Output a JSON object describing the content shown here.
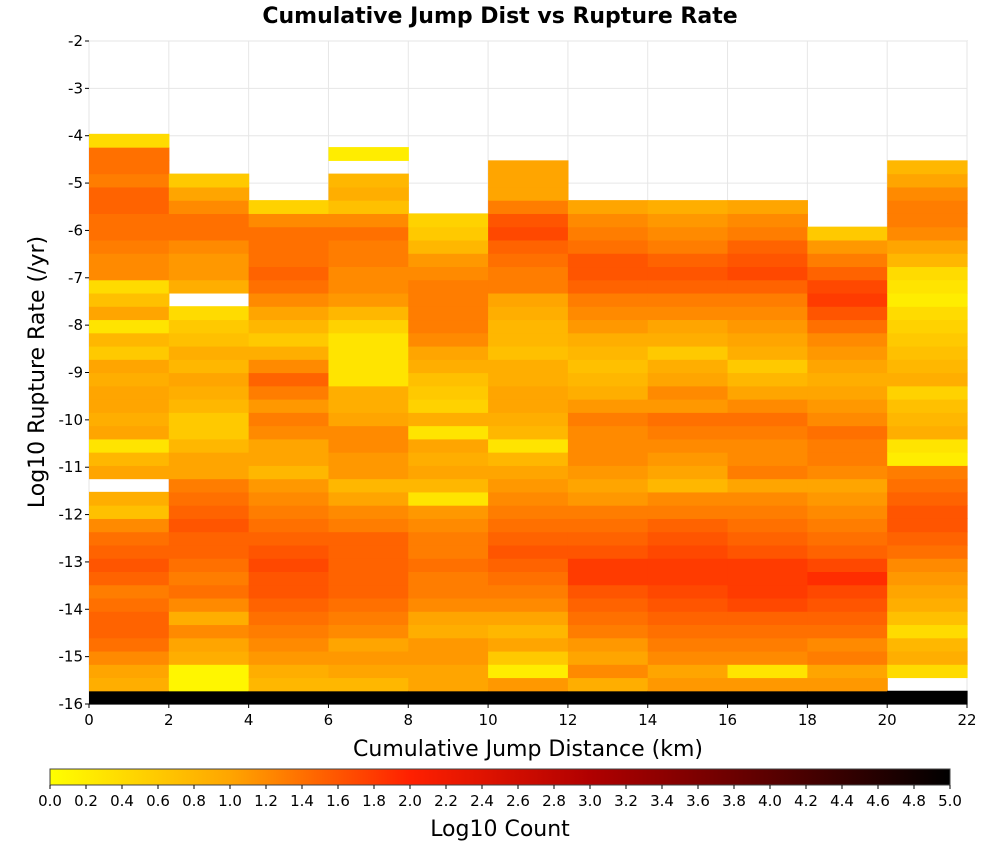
{
  "chart_data": {
    "type": "heatmap",
    "title": "Cumulative Jump Dist vs Rupture Rate",
    "xlabel": "Cumulative Jump Distance (km)",
    "ylabel": "Log10 Rupture Rate (/yr)",
    "xlim": [
      0,
      22
    ],
    "ylim": [
      -16,
      -2
    ],
    "x_ticks": [
      "0",
      "2",
      "4",
      "6",
      "8",
      "10",
      "12",
      "14",
      "16",
      "18",
      "20",
      "22"
    ],
    "y_ticks": [
      "-2",
      "-3",
      "-4",
      "-5",
      "-6",
      "-7",
      "-8",
      "-9",
      "-10",
      "-11",
      "-12",
      "-13",
      "-14",
      "-15",
      "-16"
    ],
    "x_bin_width": 2,
    "y_bin_width": 0.28,
    "colorbar": {
      "label": "Log10 Count",
      "range": [
        0,
        5
      ],
      "ticks": [
        "0.0",
        "0.2",
        "0.4",
        "0.6",
        "0.8",
        "1.0",
        "1.2",
        "1.4",
        "1.6",
        "1.8",
        "2.0",
        "2.2",
        "2.4",
        "2.6",
        "2.8",
        "3.0",
        "3.2",
        "3.4",
        "3.6",
        "3.8",
        "4.0",
        "4.2",
        "4.4",
        "4.6",
        "4.8",
        "5.0"
      ]
    },
    "note_rows": "rows ordered from the bottom (y=-16) upward; null = empty bin",
    "columns": [
      [
        5.0,
        0.9,
        1.0,
        1.2,
        1.4,
        1.5,
        1.5,
        1.4,
        1.3,
        1.5,
        1.6,
        1.5,
        1.4,
        1.2,
        0.7,
        0.9,
        null,
        1.0,
        0.8,
        0.3,
        1.0,
        0.9,
        1.0,
        1.0,
        0.9,
        1.0,
        0.6,
        0.8,
        0.3,
        1.0,
        0.7,
        0.4,
        1.2,
        1.2,
        1.3,
        1.4,
        1.4,
        1.5,
        1.5,
        1.3,
        1.4,
        1.4,
        0.4
      ],
      [
        5.0,
        0.1,
        0.1,
        0.9,
        1.0,
        1.2,
        0.9,
        1.2,
        1.4,
        1.3,
        1.4,
        1.5,
        1.5,
        1.6,
        1.5,
        1.4,
        1.3,
        1.0,
        1.0,
        0.8,
        0.6,
        0.6,
        0.8,
        0.9,
        1.0,
        0.8,
        0.9,
        0.7,
        0.6,
        0.4,
        null,
        0.9,
        1.1,
        1.1,
        1.2,
        1.4,
        1.4,
        1.2,
        1.0,
        0.6
      ],
      [
        5.0,
        0.8,
        0.9,
        1.1,
        1.2,
        1.3,
        1.4,
        1.5,
        1.6,
        1.6,
        1.7,
        1.6,
        1.5,
        1.4,
        1.3,
        1.2,
        1.1,
        0.8,
        1.0,
        1.0,
        1.2,
        1.3,
        1.1,
        1.3,
        1.5,
        1.2,
        0.9,
        0.6,
        0.8,
        1.0,
        1.2,
        1.4,
        1.5,
        1.4,
        1.4,
        1.4,
        1.2,
        0.5
      ],
      [
        5.0,
        0.8,
        1.0,
        1.1,
        1.0,
        1.2,
        1.3,
        1.4,
        1.5,
        1.5,
        1.5,
        1.5,
        1.5,
        1.3,
        1.2,
        1.0,
        0.8,
        1.1,
        1.1,
        1.2,
        1.2,
        1.0,
        0.9,
        0.9,
        0.3,
        0.3,
        0.3,
        0.3,
        0.5,
        0.8,
        1.1,
        1.2,
        1.2,
        1.3,
        1.3,
        1.4,
        1.2,
        0.7,
        0.9,
        0.8,
        null,
        0.2
      ],
      [
        5.0,
        1.0,
        1.0,
        1.1,
        1.1,
        0.9,
        1.0,
        1.2,
        1.3,
        1.3,
        1.4,
        1.3,
        1.3,
        1.2,
        1.1,
        0.3,
        0.8,
        1.0,
        0.9,
        1.0,
        0.3,
        0.9,
        0.5,
        0.6,
        0.7,
        0.9,
        1.0,
        1.2,
        1.3,
        1.3,
        1.3,
        1.3,
        1.2,
        1.1,
        0.8,
        0.6,
        0.5
      ],
      [
        5.0,
        1.1,
        0.2,
        0.6,
        1.0,
        0.8,
        1.0,
        1.2,
        1.3,
        1.4,
        1.5,
        1.6,
        1.5,
        1.4,
        1.3,
        1.2,
        1.1,
        1.0,
        0.8,
        0.3,
        0.8,
        0.9,
        1.0,
        1.0,
        0.9,
        0.9,
        0.7,
        0.8,
        0.8,
        0.9,
        1.0,
        1.3,
        1.3,
        1.4,
        1.5,
        1.7,
        1.6,
        1.3,
        1.0,
        1.0,
        1.0
      ],
      [
        5.0,
        0.9,
        1.2,
        1.0,
        1.1,
        1.3,
        1.4,
        1.5,
        1.6,
        1.8,
        1.8,
        1.6,
        1.5,
        1.4,
        1.3,
        1.1,
        1.0,
        1.1,
        1.2,
        1.2,
        1.2,
        1.3,
        1.1,
        0.9,
        0.8,
        0.7,
        0.8,
        0.9,
        1.1,
        1.2,
        1.3,
        1.5,
        1.6,
        1.6,
        1.4,
        1.3,
        1.2,
        1.0
      ],
      [
        5.0,
        1.1,
        1.0,
        1.2,
        1.3,
        1.4,
        1.5,
        1.6,
        1.7,
        1.8,
        1.8,
        1.7,
        1.6,
        1.5,
        1.3,
        1.2,
        0.8,
        1.0,
        1.1,
        1.2,
        1.3,
        1.4,
        1.1,
        1.2,
        1.0,
        0.9,
        0.6,
        0.9,
        1.0,
        1.2,
        1.3,
        1.5,
        1.6,
        1.5,
        1.3,
        1.2,
        1.1,
        0.9
      ],
      [
        5.0,
        1.1,
        0.3,
        1.2,
        1.3,
        1.4,
        1.5,
        1.7,
        1.8,
        1.8,
        1.8,
        1.6,
        1.5,
        1.4,
        1.3,
        1.2,
        1.0,
        1.3,
        1.2,
        1.2,
        1.3,
        1.4,
        1.2,
        1.0,
        0.8,
        0.6,
        0.9,
        1.0,
        1.1,
        1.2,
        1.3,
        1.5,
        1.7,
        1.6,
        1.5,
        1.3,
        1.2,
        1.0
      ],
      [
        5.0,
        1.1,
        1.0,
        1.3,
        1.2,
        1.4,
        1.5,
        1.6,
        1.7,
        1.9,
        1.7,
        1.5,
        1.4,
        1.3,
        1.2,
        1.1,
        1.0,
        1.2,
        1.3,
        1.3,
        1.4,
        1.2,
        1.1,
        1.0,
        0.9,
        1.0,
        1.1,
        1.2,
        1.4,
        1.6,
        1.8,
        1.7,
        1.5,
        1.3,
        1.1,
        0.6
      ],
      [
        5.0,
        null,
        0.4,
        0.9,
        0.8,
        0.4,
        0.7,
        0.9,
        1.0,
        1.1,
        1.2,
        1.4,
        1.5,
        1.6,
        1.6,
        1.5,
        1.4,
        1.3,
        0.2,
        0.3,
        0.9,
        0.8,
        0.7,
        0.5,
        0.9,
        0.8,
        0.7,
        0.6,
        0.5,
        0.4,
        0.2,
        0.3,
        0.4,
        0.8,
        1.0,
        1.2,
        1.3,
        1.3,
        1.2,
        1.0,
        0.8
      ]
    ]
  }
}
